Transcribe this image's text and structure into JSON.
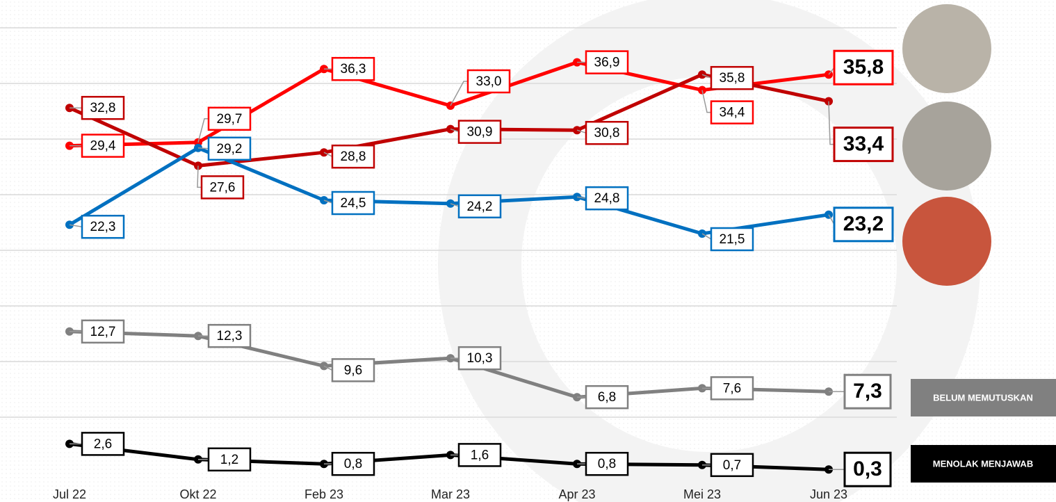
{
  "chart_data": {
    "type": "line",
    "categories": [
      "Jul 22",
      "Okt 22",
      "Feb 23",
      "Mar 23",
      "Apr 23",
      "Mei 23",
      "Jun 23"
    ],
    "ylim": [
      0,
      42.5
    ],
    "yticks": [
      5,
      10,
      15,
      20,
      25,
      30,
      35,
      40
    ],
    "grid": true,
    "series": [
      {
        "color": "#ff0000",
        "values": [
          29.4,
          29.7,
          36.3,
          33.0,
          36.9,
          34.4,
          35.8
        ],
        "value_labels": [
          "29,4",
          "29,7",
          "36,3",
          "33,0",
          "36,9",
          "34,4",
          "35,8"
        ]
      },
      {
        "color": "#c00000",
        "values": [
          32.8,
          27.6,
          28.8,
          30.9,
          30.8,
          35.8,
          33.4
        ],
        "value_labels": [
          "32,8",
          "27,6",
          "28,8",
          "30,9",
          "30,8",
          "35,8",
          "33,4"
        ]
      },
      {
        "color": "#0070c0",
        "values": [
          22.3,
          29.2,
          24.5,
          24.2,
          24.8,
          21.5,
          23.2
        ],
        "value_labels": [
          "22,3",
          "29,2",
          "24,5",
          "24,2",
          "24,8",
          "21,5",
          "23,2"
        ]
      },
      {
        "name": "BELUM MEMUTUSKAN",
        "color": "#808080",
        "values": [
          12.7,
          12.3,
          9.6,
          10.3,
          6.8,
          7.6,
          7.3
        ],
        "value_labels": [
          "12,7",
          "12,3",
          "9,6",
          "10,3",
          "6,8",
          "7,6",
          "7,3"
        ]
      },
      {
        "name": "MENOLAK MENJAWAB",
        "color": "#000000",
        "values": [
          2.6,
          1.2,
          0.8,
          1.6,
          0.8,
          0.7,
          0.3
        ],
        "value_labels": [
          "2,6",
          "1,2",
          "0,8",
          "1,6",
          "0,8",
          "0,7",
          "0,3"
        ]
      }
    ]
  }
}
